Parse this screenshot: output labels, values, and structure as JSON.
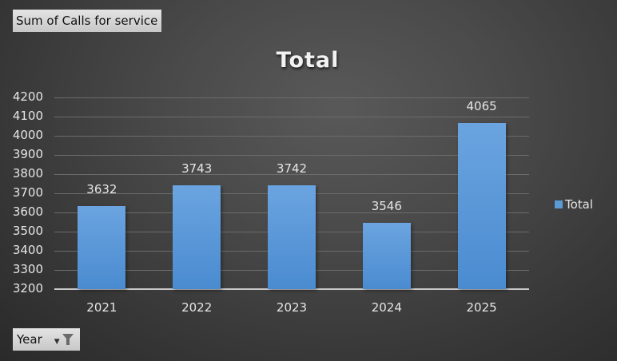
{
  "field_buttons": {
    "values": "Sum of Calls for service",
    "axis": "Year"
  },
  "colors": {
    "bar": "#5b9bd5",
    "background": "#404040",
    "text": "#e6e6e6"
  },
  "legend": {
    "label": "Total"
  },
  "chart_data": {
    "type": "bar",
    "title": "Total",
    "xlabel": "",
    "ylabel": "",
    "categories": [
      "2021",
      "2022",
      "2023",
      "2024",
      "2025"
    ],
    "series": [
      {
        "name": "Total",
        "values": [
          3632,
          3743,
          3742,
          3546,
          4065
        ]
      }
    ],
    "values": [
      3632,
      3743,
      3742,
      3546,
      4065
    ],
    "ylim": [
      3200,
      4200
    ],
    "yticks": [
      "4200",
      "4100",
      "4000",
      "3900",
      "3800",
      "3700",
      "3600",
      "3500",
      "3400",
      "3300",
      "3200"
    ],
    "grid": true,
    "data_labels": true,
    "legend_position": "right"
  }
}
